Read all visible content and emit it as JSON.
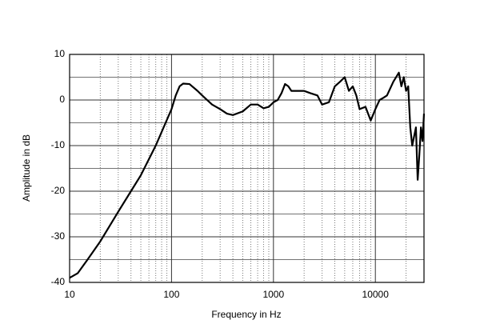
{
  "chart_data": {
    "type": "line",
    "x_label": "Frequency in Hz",
    "y_label": "Amplitude in dB",
    "xscale": "log",
    "xlim": [
      10,
      30000
    ],
    "ylim": [
      -40,
      10
    ],
    "xticks": [
      10,
      100,
      1000,
      10000
    ],
    "xminor": [
      20,
      30,
      40,
      50,
      60,
      70,
      80,
      90,
      200,
      300,
      400,
      500,
      600,
      700,
      800,
      900,
      2000,
      3000,
      4000,
      5000,
      6000,
      7000,
      8000,
      9000,
      20000
    ],
    "yticks": [
      -40,
      -30,
      -20,
      -10,
      0,
      10
    ],
    "yminor": [
      -35,
      -25,
      -15,
      -5,
      5
    ],
    "grid": true,
    "series": [
      {
        "color": "#000000",
        "x": [
          10,
          12,
          15,
          20,
          30,
          40,
          50,
          70,
          100,
          110,
          120,
          130,
          150,
          180,
          200,
          250,
          300,
          350,
          400,
          500,
          600,
          700,
          800,
          900,
          1000,
          1100,
          1200,
          1300,
          1400,
          1500,
          1700,
          2000,
          2300,
          2700,
          3000,
          3500,
          4000,
          4500,
          5000,
          5500,
          6000,
          6500,
          7000,
          8000,
          9000,
          10000,
          11000,
          12000,
          13000,
          15000,
          17000,
          18000,
          19000,
          20000,
          21000,
          22000,
          23000,
          25000,
          26000,
          27000,
          28000,
          29000,
          30000
        ],
        "values": [
          -39,
          -38,
          -35,
          -31,
          -24.5,
          -20,
          -16.5,
          -10,
          -2,
          1,
          3,
          3.6,
          3.5,
          2,
          1,
          -1,
          -2,
          -3,
          -3.3,
          -2.5,
          -1,
          -1,
          -1.8,
          -1.5,
          -0.5,
          0,
          1.5,
          3.5,
          3,
          2,
          2,
          2,
          1.5,
          1,
          -1,
          -0.5,
          3,
          4,
          5,
          2,
          3,
          1,
          -2,
          -1.5,
          -4.5,
          -2,
          0,
          0.5,
          1,
          4,
          6,
          3,
          5,
          2,
          3,
          -6,
          -10,
          -6,
          -17.5,
          -12,
          -6,
          -9,
          -3
        ]
      }
    ]
  }
}
